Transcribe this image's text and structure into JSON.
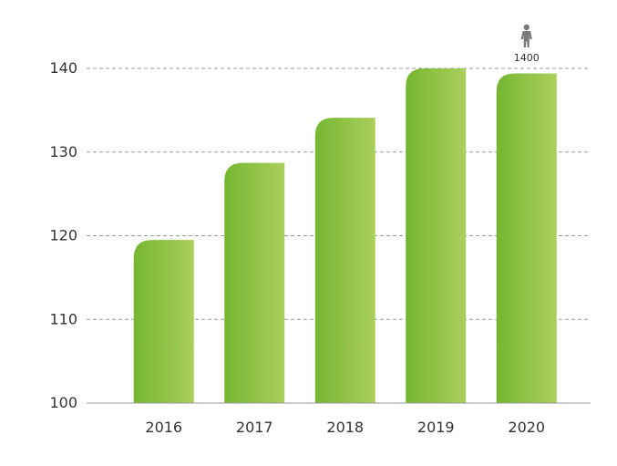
{
  "chart_data": {
    "type": "bar",
    "title": "",
    "xlabel": "",
    "ylabel": "",
    "categories": [
      "2016",
      "2017",
      "2018",
      "2019",
      "2020"
    ],
    "values": [
      119.5,
      128.7,
      134.1,
      140.0,
      139.4
    ],
    "ylim": [
      100,
      140
    ],
    "yticks": [
      100,
      110,
      120,
      130,
      140
    ],
    "grid": "dashed horizontal",
    "legend": "none",
    "colors": {
      "bar_start": "#74b631",
      "bar_end": "#abcf5b",
      "grid": "#9a9a9a",
      "axis": "#9a9a9a",
      "text": "#333333",
      "icon": "#7a7a7a"
    },
    "annotation": {
      "icon": "person-icon",
      "label": "1400",
      "category": "2020"
    }
  }
}
